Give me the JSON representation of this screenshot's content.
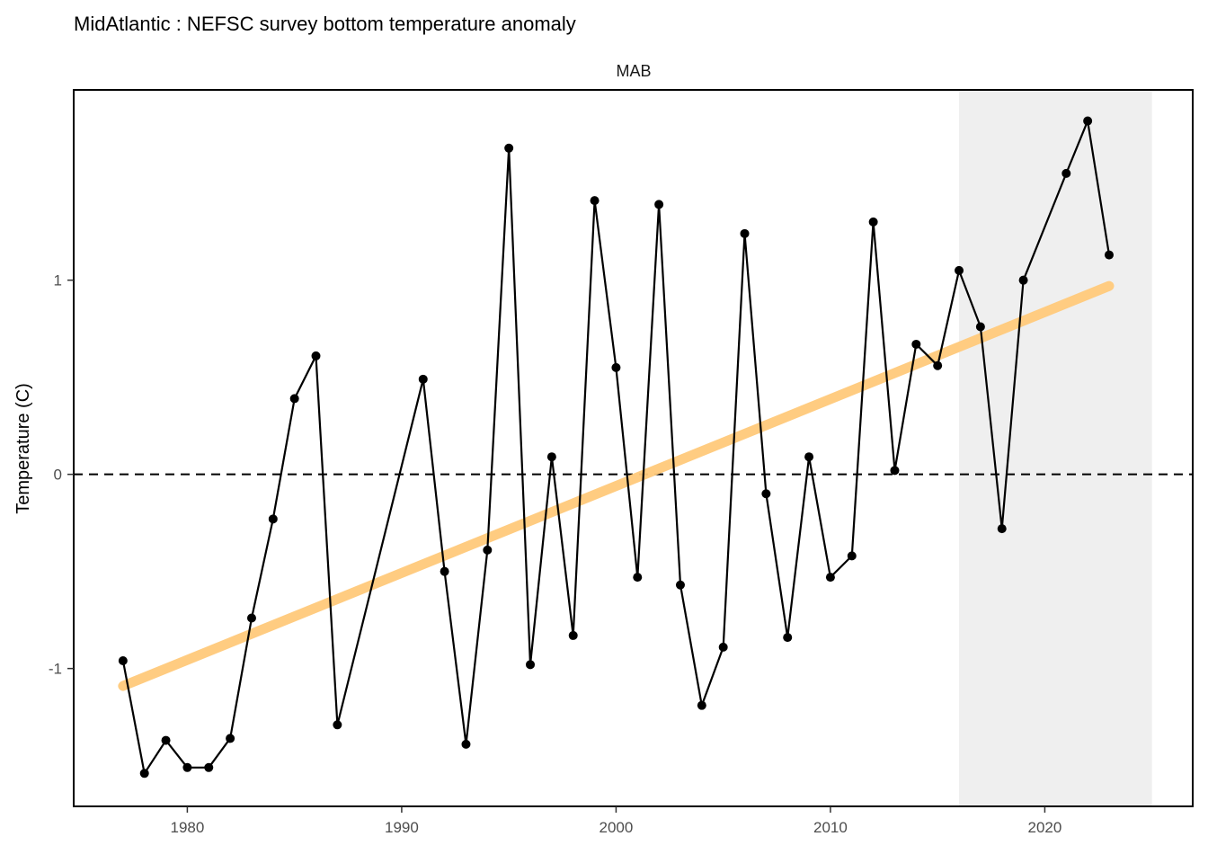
{
  "chart_data": {
    "type": "line",
    "title": "MidAtlantic : NEFSC survey bottom temperature anomaly",
    "panel_label": "MAB",
    "xlabel": "",
    "ylabel": "Temperature (C)",
    "xlim": [
      1974.7,
      2026.9
    ],
    "ylim": [
      -1.71,
      1.98
    ],
    "x_ticks": [
      1980,
      1990,
      2000,
      2010,
      2020
    ],
    "y_ticks": [
      -1,
      0,
      1
    ],
    "reference_line_y": 0,
    "highlight_region": {
      "x_start": 2016,
      "x_end": 2025,
      "color": "#efefef"
    },
    "grid": false,
    "series": [
      {
        "x": [
          1977,
          1978,
          1979,
          1980,
          1981,
          1982,
          1983,
          1984,
          1985,
          1986,
          1987,
          1991,
          1992,
          1993,
          1994,
          1995,
          1996,
          1997,
          1998,
          1999,
          2000,
          2001,
          2002,
          2003,
          2004,
          2005,
          2006,
          2007,
          2008,
          2009,
          2010,
          2011,
          2012,
          2013,
          2014,
          2015,
          2016,
          2017,
          2018,
          2019,
          2021,
          2022,
          2023
        ],
        "values": [
          -0.96,
          -1.54,
          -1.37,
          -1.51,
          -1.51,
          -1.36,
          -0.74,
          -0.23,
          0.39,
          0.61,
          -1.29,
          0.49,
          -0.5,
          -1.39,
          -0.39,
          1.68,
          -0.98,
          0.09,
          -0.83,
          1.41,
          0.55,
          -0.53,
          1.39,
          -0.57,
          -1.19,
          -0.89,
          1.24,
          -0.1,
          -0.84,
          0.09,
          -0.53,
          -0.42,
          1.3,
          0.02,
          0.67,
          0.56,
          1.05,
          0.76,
          -0.28,
          1.0,
          1.55,
          1.82,
          1.13
        ],
        "color": "#000000"
      }
    ],
    "trend": {
      "x": [
        1977,
        2023
      ],
      "values": [
        -1.09,
        0.97
      ],
      "color": "#ffc97a"
    }
  }
}
